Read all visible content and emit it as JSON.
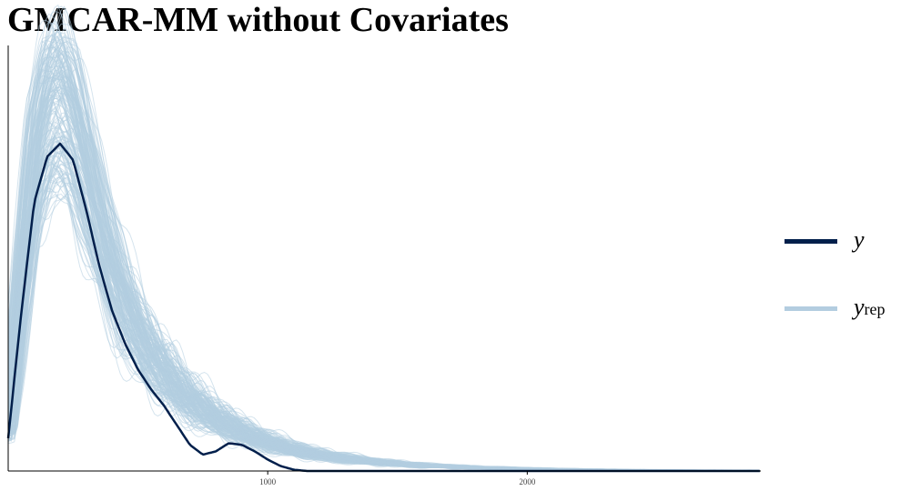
{
  "title": "GMCAR-MM without Covariates",
  "chart_data": {
    "type": "line",
    "title": "GMCAR-MM without Covariates",
    "xlabel": "",
    "ylabel": "",
    "x_ticks": [
      1000,
      2000
    ],
    "xlim": [
      0,
      2900
    ],
    "grid": false,
    "legend_position": "right",
    "series": [
      {
        "name": "y",
        "color": "#011f4b",
        "x": [
          0,
          50,
          100,
          150,
          200,
          250,
          300,
          350,
          400,
          450,
          500,
          550,
          600,
          650,
          700,
          750,
          800,
          850,
          900,
          950,
          1000,
          1050,
          1100,
          1150,
          1200,
          1300
        ],
        "density": [
          0.1,
          0.48,
          0.82,
          0.96,
          1.0,
          0.95,
          0.8,
          0.63,
          0.49,
          0.39,
          0.31,
          0.25,
          0.2,
          0.14,
          0.08,
          0.05,
          0.06,
          0.085,
          0.08,
          0.06,
          0.035,
          0.015,
          0.004,
          0.0,
          0.0,
          0.0
        ]
      },
      {
        "name": "y_rep",
        "color": "#b3cde0",
        "x": [
          0,
          50,
          100,
          150,
          200,
          250,
          300,
          350,
          400,
          450,
          500,
          550,
          600,
          700,
          800,
          900,
          1000,
          1100,
          1200,
          1400,
          1600,
          1800,
          2000,
          2200,
          2400,
          2600,
          2800,
          2900
        ],
        "density_center": [
          0.12,
          0.52,
          0.9,
          1.06,
          1.1,
          1.03,
          0.88,
          0.73,
          0.6,
          0.49,
          0.41,
          0.34,
          0.29,
          0.21,
          0.155,
          0.115,
          0.085,
          0.063,
          0.047,
          0.027,
          0.016,
          0.01,
          0.0065,
          0.004,
          0.0025,
          0.0015,
          0.001,
          0.0008
        ]
      }
    ]
  },
  "legend": {
    "y_label": "y",
    "yrep_label": "y",
    "yrep_sub": "rep"
  }
}
